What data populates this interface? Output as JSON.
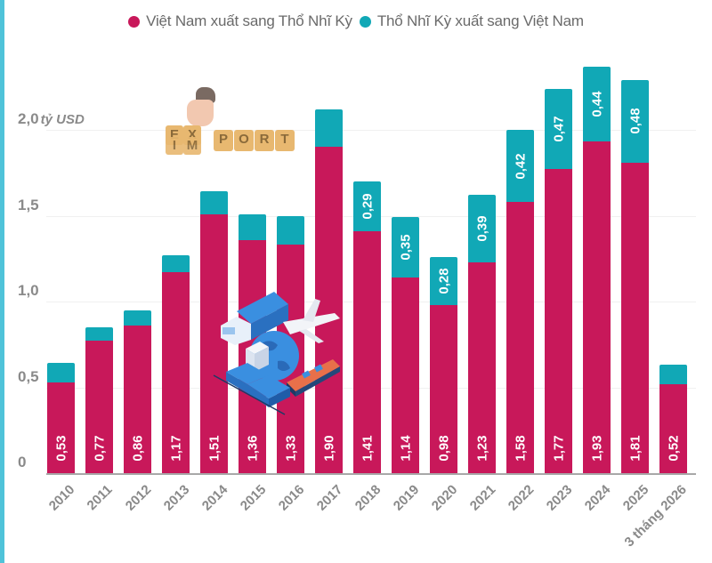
{
  "chart_data": {
    "type": "bar",
    "stacked": true,
    "title": "",
    "xlabel": "",
    "ylabel": "tỷ USD",
    "ylim": [
      0,
      2.4
    ],
    "yticks": [
      "0",
      "0,5",
      "1,0",
      "1,5",
      "2,0"
    ],
    "y_unit_label": "tỷ USD",
    "grid": true,
    "legend_position": "top",
    "categories": [
      "2010",
      "2011",
      "2012",
      "2013",
      "2014",
      "2015",
      "2016",
      "2017",
      "2018",
      "2019",
      "2020",
      "2021",
      "2022",
      "2023",
      "2024",
      "2025",
      "3 tháng 2026"
    ],
    "series": [
      {
        "name": "Việt Nam xuất sang Thổ Nhĩ Kỳ",
        "color": "#c8185a",
        "values": [
          0.53,
          0.77,
          0.86,
          1.17,
          1.51,
          1.36,
          1.33,
          1.9,
          1.41,
          1.14,
          0.98,
          1.23,
          1.58,
          1.77,
          1.93,
          1.81,
          0.52
        ],
        "labels": [
          "0,53",
          "0,77",
          "0,86",
          "1,17",
          "1,51",
          "1,36",
          "1,33",
          "1,90",
          "1,41",
          "1,14",
          "0,98",
          "1,23",
          "1,58",
          "1,77",
          "1,93",
          "1,81",
          "0,52"
        ]
      },
      {
        "name": "Thổ Nhĩ Kỳ xuất sang Việt Nam",
        "color": "#11a8b6",
        "values": [
          0.11,
          0.08,
          0.09,
          0.1,
          0.13,
          0.15,
          0.17,
          0.22,
          0.29,
          0.35,
          0.28,
          0.39,
          0.42,
          0.47,
          0.44,
          0.48,
          0.11
        ],
        "labels": [
          "",
          "",
          "",
          "",
          "",
          "",
          "",
          "",
          "0,29",
          "0,35",
          "0,28",
          "0,39",
          "0,42",
          "0,47",
          "0,44",
          "0,48",
          ""
        ]
      }
    ]
  },
  "legend": {
    "items": [
      {
        "label": "Việt Nam xuất sang Thổ Nhĩ Kỳ",
        "color": "#c8185a"
      },
      {
        "label": "Thổ Nhĩ Kỳ xuất sang Việt Nam",
        "color": "#11a8b6"
      }
    ]
  },
  "axis": {
    "y_ticks": [
      {
        "label": "0",
        "value": 0
      },
      {
        "label": "0,5",
        "value": 0.5
      },
      {
        "label": "1,0",
        "value": 1.0
      },
      {
        "label": "1,5",
        "value": 1.5
      },
      {
        "label": "2,0",
        "value": 2.0
      }
    ],
    "unit": "tỷ USD"
  },
  "illustrations": {
    "blocks_top": [
      "E",
      "X"
    ],
    "blocks_bottom": [
      "I",
      "M",
      "P",
      "O",
      "R",
      "T"
    ]
  },
  "colors": {
    "accent_border": "#4fc3d9",
    "vn_export": "#c8185a",
    "tr_export": "#11a8b6"
  }
}
